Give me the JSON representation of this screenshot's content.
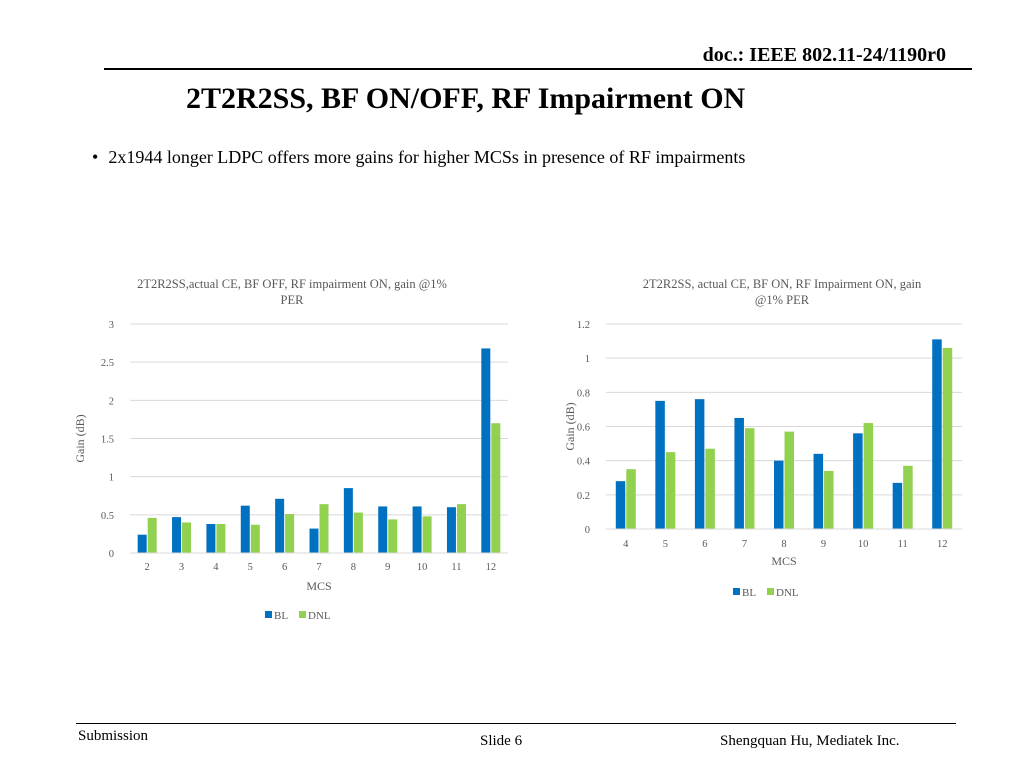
{
  "header": {
    "doc_id": "doc.: IEEE 802.11-24/1190r0"
  },
  "slide": {
    "title": "2T2R2SS, BF ON/OFF, RF Impairment ON",
    "bullet_marker": "•",
    "bullet": "2x1944 longer LDPC offers more gains for higher MCSs in presence of RF impairments"
  },
  "colors": {
    "BL": "#0070C0",
    "DNL": "#92D050",
    "grid": "#d9d9d9",
    "axis_text": "#595959"
  },
  "chart_data": [
    {
      "type": "bar",
      "title_lines": [
        "2T2R2SS,actual CE, BF OFF, RF impairment ON, gain @1%",
        "PER"
      ],
      "categories": [
        "2",
        "3",
        "4",
        "5",
        "6",
        "7",
        "8",
        "9",
        "10",
        "11",
        "12"
      ],
      "series": [
        {
          "name": "BL",
          "values": [
            0.24,
            0.47,
            0.38,
            0.62,
            0.71,
            0.32,
            0.85,
            0.61,
            0.61,
            0.6,
            2.68
          ]
        },
        {
          "name": "DNL",
          "values": [
            0.46,
            0.4,
            0.38,
            0.37,
            0.51,
            0.64,
            0.53,
            0.44,
            0.48,
            0.64,
            1.7
          ]
        }
      ],
      "xlabel": "MCS",
      "ylabel": "Gain (dB)",
      "ylim": [
        0,
        3
      ],
      "yticks": [
        "0",
        "0.5",
        "1",
        "1.5",
        "2",
        "2.5",
        "3"
      ],
      "grid": true,
      "legend": "bottom"
    },
    {
      "type": "bar",
      "title_lines": [
        "2T2R2SS, actual CE, BF ON, RF Impairment ON, gain",
        "@1% PER"
      ],
      "categories": [
        "4",
        "5",
        "6",
        "7",
        "8",
        "9",
        "10",
        "11",
        "12"
      ],
      "series": [
        {
          "name": "BL",
          "values": [
            0.28,
            0.75,
            0.76,
            0.65,
            0.4,
            0.44,
            0.56,
            0.27,
            1.11
          ]
        },
        {
          "name": "DNL",
          "values": [
            0.35,
            0.45,
            0.47,
            0.59,
            0.57,
            0.34,
            0.62,
            0.37,
            1.06
          ]
        }
      ],
      "xlabel": "MCS",
      "ylabel": "Gain (dB)",
      "ylim": [
        0,
        1.2
      ],
      "yticks": [
        "0",
        "0.2",
        "0.4",
        "0.6",
        "0.8",
        "1",
        "1.2"
      ],
      "grid": true,
      "legend": "bottom"
    }
  ],
  "footer": {
    "left": "Submission",
    "center": "Slide 6",
    "right": "Shengquan Hu, Mediatek Inc."
  }
}
